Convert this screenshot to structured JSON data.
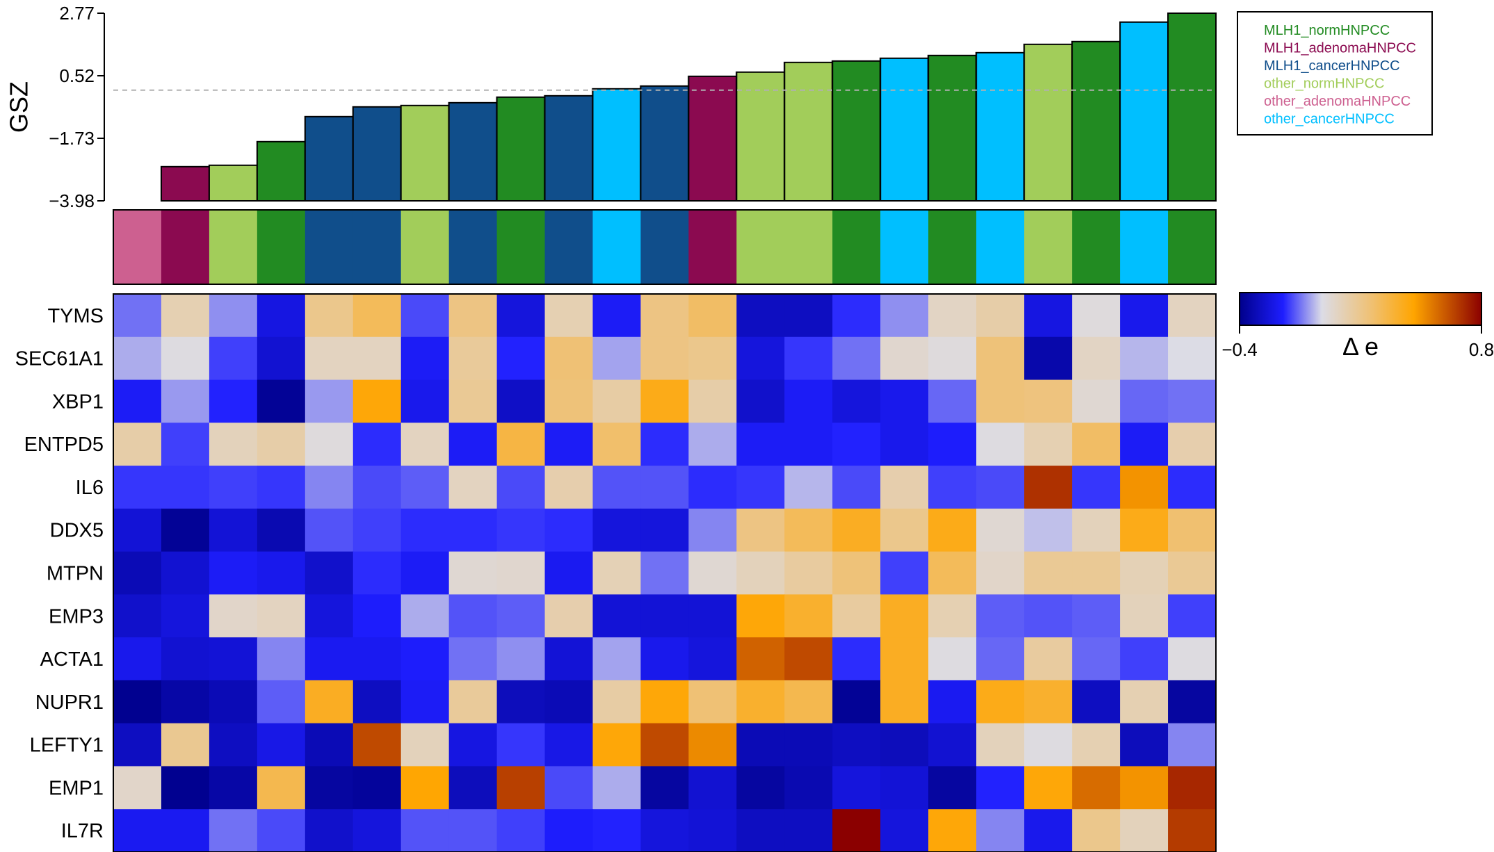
{
  "chart_data": {
    "type": "heatmap",
    "bar_panel": {
      "type": "bar",
      "ylabel": "GSZ",
      "yticks": [
        2.77,
        0.52,
        -1.73,
        -3.98
      ],
      "ylim": [
        -3.98,
        2.77
      ],
      "reference_line": 0.0,
      "values": [
        -3.98,
        -2.75,
        -2.7,
        -1.85,
        -0.95,
        -0.6,
        -0.55,
        -0.45,
        -0.25,
        -0.2,
        0.05,
        0.15,
        0.5,
        0.65,
        1.0,
        1.05,
        1.15,
        1.25,
        1.35,
        1.65,
        1.75,
        2.45,
        2.77
      ],
      "groups": [
        "other_adenomaHNPCC",
        "MLH1_adenomaHNPCC",
        "other_normHNPCC",
        "MLH1_normHNPCC",
        "MLH1_cancerHNPCC",
        "MLH1_cancerHNPCC",
        "other_normHNPCC",
        "MLH1_cancerHNPCC",
        "MLH1_normHNPCC",
        "MLH1_cancerHNPCC",
        "other_cancerHNPCC",
        "MLH1_cancerHNPCC",
        "MLH1_adenomaHNPCC",
        "other_normHNPCC",
        "other_normHNPCC",
        "MLH1_normHNPCC",
        "other_cancerHNPCC",
        "MLH1_normHNPCC",
        "other_cancerHNPCC",
        "other_normHNPCC",
        "MLH1_normHNPCC",
        "other_cancerHNPCC",
        "MLH1_normHNPCC"
      ]
    },
    "legend": {
      "placement": "top-right",
      "entries": [
        {
          "label": "MLH1_normHNPCC",
          "color": "#228B22"
        },
        {
          "label": "MLH1_adenomaHNPCC",
          "color": "#8B0A50"
        },
        {
          "label": "MLH1_cancerHNPCC",
          "color": "#104E8B"
        },
        {
          "label": "other_normHNPCC",
          "color": "#A2CD5A"
        },
        {
          "label": "other_adenomaHNPCC",
          "color": "#CD6090"
        },
        {
          "label": "other_cancerHNPCC",
          "color": "#00BFFF"
        }
      ]
    },
    "heatmap": {
      "rows": [
        "TYMS",
        "SEC61A1",
        "XBP1",
        "ENTPD5",
        "IL6",
        "DDX5",
        "MTPN",
        "EMP3",
        "ACTA1",
        "NUPR1",
        "LEFTY1",
        "EMP1",
        "IL7R"
      ],
      "values": [
        [
          -0.1,
          0.12,
          -0.07,
          -0.24,
          0.2,
          0.3,
          -0.14,
          0.22,
          -0.25,
          0.12,
          -0.2,
          0.22,
          0.28,
          -0.3,
          -0.3,
          -0.17,
          -0.07,
          0.08,
          0.14,
          -0.24,
          0.03,
          -0.22,
          0.09
        ],
        [
          -0.04,
          0.02,
          -0.15,
          -0.27,
          0.09,
          0.09,
          -0.2,
          0.17,
          -0.18,
          0.25,
          -0.05,
          0.22,
          0.2,
          -0.25,
          -0.16,
          -0.1,
          0.06,
          0.03,
          0.24,
          -0.34,
          0.08,
          -0.03,
          0.01
        ],
        [
          -0.2,
          -0.06,
          -0.18,
          -0.38,
          -0.06,
          0.45,
          -0.22,
          0.18,
          -0.29,
          0.24,
          0.15,
          0.42,
          0.14,
          -0.28,
          -0.2,
          -0.25,
          -0.22,
          -0.11,
          0.24,
          0.23,
          0.05,
          -0.11,
          -0.1
        ],
        [
          0.14,
          -0.15,
          0.1,
          0.14,
          0.03,
          -0.17,
          0.09,
          -0.2,
          0.34,
          -0.2,
          0.27,
          -0.17,
          -0.04,
          -0.2,
          -0.2,
          -0.18,
          -0.22,
          -0.19,
          0.02,
          0.12,
          0.28,
          -0.2,
          0.13
        ],
        [
          -0.16,
          -0.16,
          -0.15,
          -0.16,
          -0.08,
          -0.14,
          -0.12,
          0.09,
          -0.14,
          0.13,
          -0.13,
          -0.13,
          -0.17,
          -0.16,
          -0.03,
          -0.14,
          0.13,
          -0.15,
          -0.14,
          0.7,
          -0.16,
          0.5,
          -0.17
        ],
        [
          -0.26,
          -0.38,
          -0.26,
          -0.33,
          -0.13,
          -0.15,
          -0.17,
          -0.17,
          -0.16,
          -0.17,
          -0.25,
          -0.25,
          -0.08,
          0.22,
          0.3,
          0.4,
          0.2,
          0.42,
          0.05,
          -0.02,
          0.1,
          0.42,
          0.26
        ],
        [
          -0.32,
          -0.27,
          -0.2,
          -0.22,
          -0.28,
          -0.17,
          -0.2,
          0.05,
          0.06,
          -0.21,
          0.11,
          -0.1,
          0.05,
          0.1,
          0.16,
          0.24,
          -0.15,
          0.3,
          0.07,
          0.18,
          0.18,
          0.11,
          0.18
        ],
        [
          -0.28,
          -0.25,
          0.07,
          0.09,
          -0.25,
          -0.19,
          -0.04,
          -0.13,
          -0.12,
          0.13,
          -0.26,
          -0.26,
          -0.26,
          0.45,
          0.38,
          0.16,
          0.4,
          0.12,
          -0.12,
          -0.13,
          -0.12,
          0.1,
          -0.15
        ],
        [
          -0.22,
          -0.27,
          -0.26,
          -0.08,
          -0.21,
          -0.21,
          -0.19,
          -0.1,
          -0.07,
          -0.26,
          -0.05,
          -0.22,
          -0.25,
          0.6,
          0.65,
          -0.17,
          0.4,
          0.02,
          -0.11,
          0.16,
          -0.11,
          -0.15,
          0.02
        ],
        [
          -0.39,
          -0.35,
          -0.32,
          -0.12,
          0.4,
          -0.3,
          -0.2,
          0.17,
          -0.31,
          -0.32,
          0.15,
          0.45,
          0.25,
          0.38,
          0.32,
          -0.38,
          0.4,
          -0.21,
          0.42,
          0.38,
          -0.3,
          0.12,
          -0.36
        ],
        [
          -0.3,
          0.19,
          -0.3,
          -0.23,
          -0.32,
          0.65,
          0.1,
          -0.24,
          -0.16,
          -0.23,
          0.45,
          0.65,
          0.52,
          -0.32,
          -0.32,
          -0.3,
          -0.31,
          -0.27,
          0.1,
          0.02,
          0.12,
          -0.31,
          -0.08
        ],
        [
          0.07,
          -0.39,
          -0.35,
          0.32,
          -0.36,
          -0.37,
          0.46,
          -0.31,
          0.67,
          -0.14,
          -0.04,
          -0.36,
          -0.27,
          -0.36,
          -0.33,
          -0.25,
          -0.26,
          -0.36,
          -0.18,
          0.45,
          0.58,
          0.5,
          0.72
        ],
        [
          -0.21,
          -0.21,
          -0.1,
          -0.14,
          -0.28,
          -0.25,
          -0.13,
          -0.13,
          -0.15,
          -0.19,
          -0.18,
          -0.25,
          -0.26,
          -0.3,
          -0.3,
          0.8,
          -0.25,
          0.45,
          -0.08,
          -0.22,
          0.2,
          0.1,
          0.68
        ]
      ]
    },
    "colorbar": {
      "min": -0.4,
      "max": 0.8,
      "min_label": "−0.4",
      "max_label": "0.8",
      "title": "Δ e",
      "stops": [
        {
          "at": 0.0,
          "color": "#00008B"
        },
        {
          "at": 0.18,
          "color": "#1E1EFF"
        },
        {
          "at": 0.34,
          "color": "#DCDCE6"
        },
        {
          "at": 0.55,
          "color": "#F0C070"
        },
        {
          "at": 0.72,
          "color": "#FFA500"
        },
        {
          "at": 1.0,
          "color": "#8B0000"
        }
      ]
    }
  }
}
